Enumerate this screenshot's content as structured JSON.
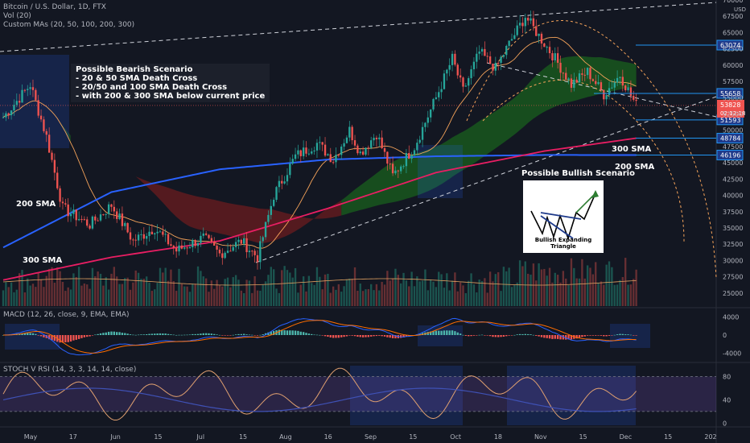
{
  "header": {
    "title": "Bitcoin / U.S. Dollar, 1D, FTX",
    "vol": "Vol (20)",
    "mas": "Custom MAs (20, 50, 100, 200, 300)",
    "macd": "MACD (12, 26, close, 9, EMA, EMA)",
    "stoch": "STOCH V RSI (14, 3, 3, 14, 14, close)"
  },
  "notes": {
    "bearish": "Possible Bearish Scenario\n- 20 & 50 SMA Death Cross\n- 20/50 and 100 SMA Death Cross\n- with 200 & 300 SMA below current price",
    "bullish_title": "Possible Bullish Scenario",
    "bullish_caption": "Bullish Expanding Triangle"
  },
  "ma_labels": {
    "sma200_left": "200 SMA",
    "sma300_left": "300 SMA",
    "sma300_right": "300 SMA",
    "sma200_right": "200 SMA"
  },
  "colors": {
    "bg": "#131722",
    "up": "#26a69a",
    "down": "#ef5350",
    "sma200": "#2962ff",
    "sma300": "#e91e63",
    "level": "#2196f3",
    "macd": "#2962ff",
    "signal": "#ff6d00",
    "stoch": "#e0a070",
    "rsi": "#3f51b5"
  },
  "chart_data": [
    {
      "type": "candlestick",
      "title": "Bitcoin / U.S. Dollar, 1D, FTX",
      "x_ticks": [
        "May",
        "17",
        "Jun",
        "15",
        "Jul",
        "15",
        "Aug",
        "16",
        "Sep",
        "15",
        "Oct",
        "18",
        "Nov",
        "15",
        "Dec",
        "15",
        "202"
      ],
      "y_ticks": [
        25000,
        27500,
        30000,
        32500,
        35000,
        37500,
        40000,
        42500,
        45000,
        47500,
        50000,
        52500,
        55000,
        57500,
        60000,
        62500,
        65000,
        67500,
        70000
      ],
      "ylim": [
        23000,
        70000
      ],
      "y_unit": "USD",
      "levels": [
        {
          "value": 63074,
          "label": "63074"
        },
        {
          "value": 55658,
          "label": "55658"
        },
        {
          "value": 51593,
          "label": "51593"
        },
        {
          "value": 48784,
          "label": "48784"
        },
        {
          "value": 46196,
          "label": "46196"
        }
      ],
      "current_price": {
        "label": "53828",
        "countdown": "02:12:18"
      },
      "price_path": [
        [
          0,
          52000
        ],
        [
          10,
          57000
        ],
        [
          16,
          49000
        ],
        [
          22,
          38000
        ],
        [
          32,
          35500
        ],
        [
          40,
          38500
        ],
        [
          48,
          33000
        ],
        [
          56,
          35000
        ],
        [
          64,
          31500
        ],
        [
          74,
          33500
        ],
        [
          80,
          31000
        ],
        [
          88,
          33000
        ],
        [
          94,
          30500
        ],
        [
          100,
          40000
        ],
        [
          108,
          46000
        ],
        [
          116,
          48000
        ],
        [
          122,
          45500
        ],
        [
          128,
          50000
        ],
        [
          132,
          46500
        ],
        [
          138,
          49500
        ],
        [
          144,
          43000
        ],
        [
          152,
          47500
        ],
        [
          160,
          55000
        ],
        [
          166,
          61000
        ],
        [
          170,
          56000
        ],
        [
          176,
          62000
        ],
        [
          182,
          59500
        ],
        [
          188,
          64000
        ],
        [
          193,
          67500
        ],
        [
          198,
          64500
        ],
        [
          204,
          61000
        ],
        [
          210,
          57000
        ],
        [
          216,
          59000
        ],
        [
          222,
          55500
        ],
        [
          228,
          58500
        ],
        [
          234,
          53800
        ]
      ],
      "sma200": [
        [
          0,
          32000
        ],
        [
          40,
          40500
        ],
        [
          80,
          44000
        ],
        [
          120,
          45500
        ],
        [
          160,
          46000
        ],
        [
          200,
          46200
        ],
        [
          234,
          46196
        ]
      ],
      "sma300": [
        [
          0,
          27000
        ],
        [
          40,
          30500
        ],
        [
          80,
          33000
        ],
        [
          120,
          38000
        ],
        [
          160,
          43500
        ],
        [
          200,
          46800
        ],
        [
          234,
          48784
        ]
      ]
    },
    {
      "type": "bar",
      "title": "Vol (20)"
    },
    {
      "type": "line",
      "title": "MACD (12, 26, close, 9, EMA, EMA)",
      "y_ticks": [
        4000,
        0,
        -4000
      ],
      "ylim": [
        -5500,
        5500
      ]
    },
    {
      "type": "line",
      "title": "STOCH V RSI (14, 3, 3, 14, 14, close)",
      "y_ticks": [
        80,
        40,
        0
      ],
      "ylim": [
        -5,
        100
      ],
      "bands": [
        20,
        80
      ]
    }
  ]
}
